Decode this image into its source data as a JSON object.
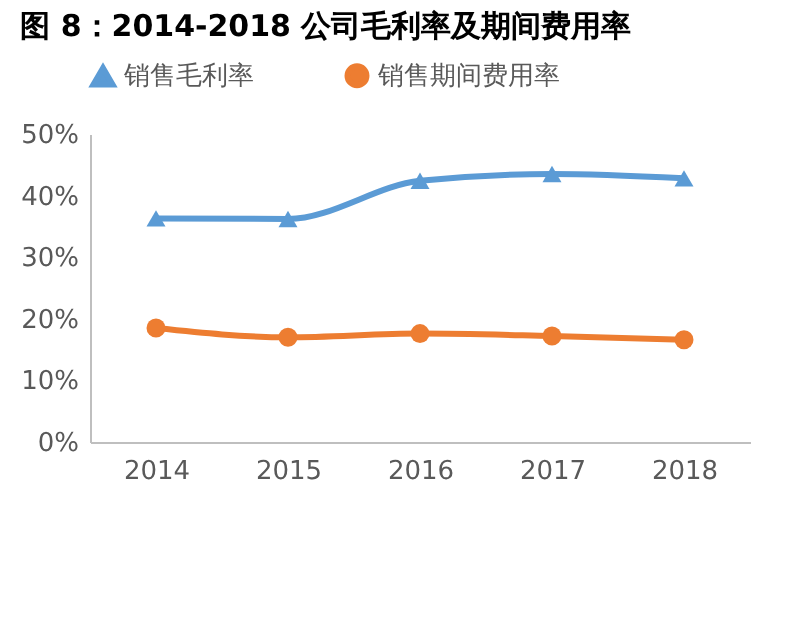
{
  "chart_data": {
    "type": "line",
    "title": "图 8：2014-2018 公司毛利率及期间费用率",
    "categories": [
      "2014",
      "2015",
      "2016",
      "2017",
      "2018"
    ],
    "series": [
      {
        "name": "销售毛利率",
        "color": "#5b9bd5",
        "marker": "triangle",
        "values": [
          36.3,
          36.2,
          42.4,
          43.5,
          42.8
        ]
      },
      {
        "name": "销售期间费用率",
        "color": "#ed7d31",
        "marker": "circle",
        "values": [
          18.5,
          17.0,
          17.6,
          17.2,
          16.6
        ]
      }
    ],
    "ylim": [
      0,
      50
    ],
    "yticks": [
      {
        "value": 0,
        "label": "0%"
      },
      {
        "value": 10,
        "label": "10%"
      },
      {
        "value": 20,
        "label": "20%"
      },
      {
        "value": 30,
        "label": "30%"
      },
      {
        "value": 40,
        "label": "40%"
      },
      {
        "value": 50,
        "label": "50%"
      }
    ],
    "grid": false,
    "legend": "top"
  }
}
